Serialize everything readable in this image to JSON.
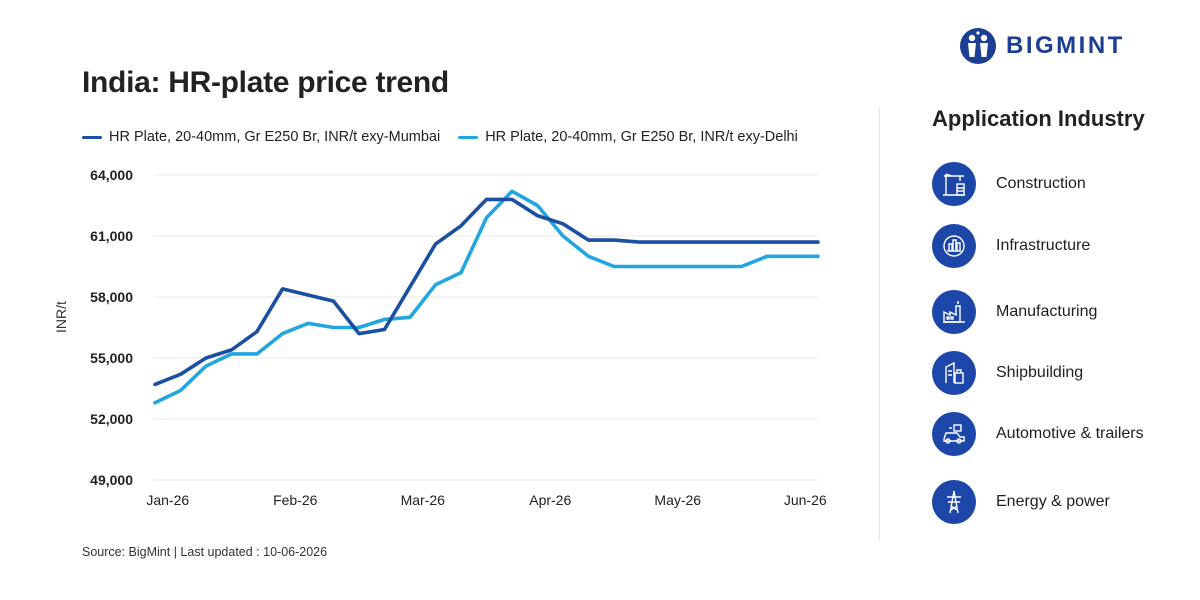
{
  "title": "India: HR-plate price trend",
  "source": "Source: BigMint | Last updated : 10-06-2026",
  "brand": {
    "name": "BIGMINT",
    "color": "#1c3f94"
  },
  "panel": {
    "title": "Application Industry",
    "items": [
      {
        "label": "Construction",
        "icon": "construction-crane-icon"
      },
      {
        "label": "Infrastructure",
        "icon": "infrastructure-gear-icon"
      },
      {
        "label": "Manufacturing",
        "icon": "factory-icon"
      },
      {
        "label": "Shipbuilding",
        "icon": "shipbuilding-icon"
      },
      {
        "label": "Automotive & trailers",
        "icon": "automotive-icon"
      },
      {
        "label": "Energy & power",
        "icon": "power-tower-icon"
      }
    ],
    "icon_color": "#1c47a8"
  },
  "chart_data": {
    "type": "line",
    "title": "India: HR-plate price trend",
    "xlabel": "",
    "ylabel": "INR/t",
    "ylim": [
      49000,
      64000
    ],
    "yticks": [
      49000,
      52000,
      55000,
      58000,
      61000,
      64000
    ],
    "ytick_labels": [
      "49,000",
      "52,000",
      "55,000",
      "58,000",
      "61,000",
      "64,000"
    ],
    "xtick_labels": [
      "Jan-26",
      "Feb-26",
      "Mar-26",
      "Apr-26",
      "May-26",
      "Jun-26"
    ],
    "xtick_positions": [
      0.5,
      5.5,
      10.5,
      15.5,
      20.5,
      25.5
    ],
    "x": [
      0,
      1,
      2,
      3,
      4,
      5,
      6,
      7,
      8,
      9,
      10,
      11,
      12,
      13,
      14,
      15,
      16,
      17,
      18,
      19,
      20,
      21,
      22,
      23,
      24,
      25,
      26
    ],
    "grid": true,
    "legend": "top",
    "series": [
      {
        "name": "HR Plate, 20-40mm, Gr E250 Br, INR/t exy-Mumbai",
        "color": "#1b4fa1",
        "values": [
          53700,
          54200,
          55000,
          55400,
          56300,
          58400,
          58100,
          57800,
          56200,
          56400,
          58500,
          60600,
          61500,
          62800,
          62800,
          62000,
          61600,
          60800,
          60800,
          60700,
          60700,
          60700,
          60700,
          60700,
          60700,
          60700,
          60700
        ]
      },
      {
        "name": "HR Plate, 20-40mm, Gr E250 Br, INR/t exy-Delhi",
        "color": "#23a6e0",
        "values": [
          52800,
          53400,
          54600,
          55200,
          55200,
          56200,
          56700,
          56500,
          56500,
          56900,
          57000,
          58600,
          59200,
          61900,
          63200,
          62500,
          61000,
          60000,
          59500,
          59500,
          59500,
          59500,
          59500,
          59500,
          60000,
          60000,
          60000
        ]
      }
    ]
  }
}
